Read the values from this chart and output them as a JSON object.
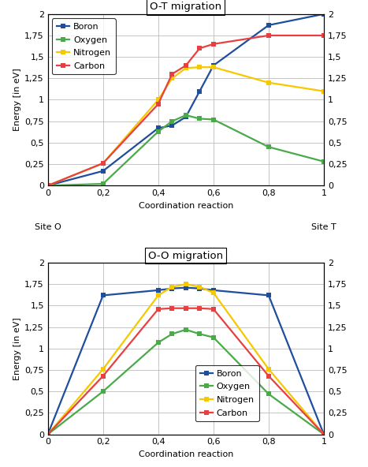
{
  "top_title": "O-T migration",
  "bottom_title": "O-O migration",
  "xlabel": "Coordination reaction",
  "ylabel": "Energy [in eV]",
  "xticks": [
    0,
    0.2,
    0.4,
    0.6,
    0.8,
    1.0
  ],
  "xticklabels": [
    "0",
    "0,2",
    "0,4",
    "0,6",
    "0,8",
    "1"
  ],
  "yticks": [
    0,
    0.25,
    0.5,
    0.75,
    1.0,
    1.25,
    1.5,
    1.75,
    2.0
  ],
  "yticklabels": [
    "0",
    "0,25",
    "0,5",
    "0,75",
    "1",
    "1,25",
    "1,5",
    "1,75",
    "2"
  ],
  "ylim": [
    0,
    2.0
  ],
  "colors": {
    "Boron": "#1f4e9c",
    "Oxygen": "#4aaa4a",
    "Nitrogen": "#f5c800",
    "Carbon": "#e84040"
  },
  "top_site_left": "Site O",
  "top_site_right": "Site T",
  "top_data": {
    "x": [
      0,
      0.2,
      0.4,
      0.45,
      0.5,
      0.55,
      0.6,
      0.8,
      1.0
    ],
    "Boron": [
      0,
      0.17,
      0.67,
      0.7,
      0.8,
      1.1,
      1.4,
      1.87,
      2.0
    ],
    "Oxygen": [
      0,
      0.02,
      0.63,
      0.75,
      0.82,
      0.78,
      0.77,
      0.45,
      0.28
    ],
    "Nitrogen": [
      0,
      0.26,
      1.0,
      1.25,
      1.37,
      1.38,
      1.38,
      1.2,
      1.1
    ],
    "Carbon": [
      0,
      0.26,
      0.95,
      1.3,
      1.4,
      1.6,
      1.65,
      1.75,
      1.75
    ]
  },
  "bottom_data": {
    "x": [
      0,
      0.2,
      0.4,
      0.45,
      0.5,
      0.55,
      0.6,
      0.8,
      1.0
    ],
    "Boron": [
      0,
      1.62,
      1.68,
      1.7,
      1.71,
      1.7,
      1.68,
      1.62,
      0.0
    ],
    "Oxygen": [
      0,
      0.5,
      1.07,
      1.17,
      1.22,
      1.17,
      1.13,
      0.47,
      0.0
    ],
    "Nitrogen": [
      0,
      0.76,
      1.62,
      1.72,
      1.75,
      1.72,
      1.65,
      0.76,
      0.0
    ],
    "Carbon": [
      0,
      0.68,
      1.46,
      1.47,
      1.47,
      1.47,
      1.46,
      0.68,
      0.0
    ]
  },
  "series_order": [
    "Boron",
    "Oxygen",
    "Nitrogen",
    "Carbon"
  ],
  "marker": "s",
  "markersize": 4,
  "linewidth": 1.6,
  "background_color": "#ffffff",
  "grid_color": "#bbbbbb",
  "legend_fontsize": 8,
  "axis_fontsize": 8,
  "title_fontsize": 9.5
}
